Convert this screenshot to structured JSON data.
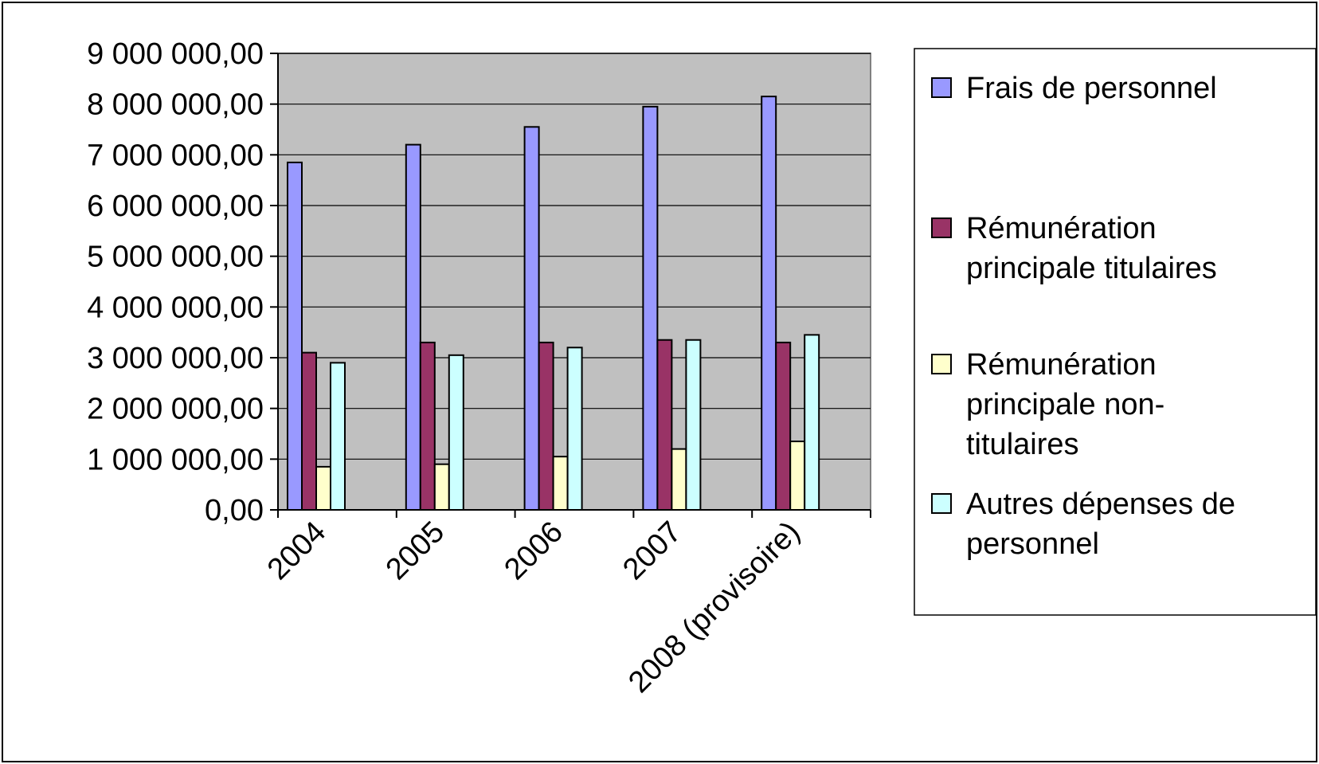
{
  "chart_data": {
    "type": "bar",
    "title": "",
    "xlabel": "",
    "ylabel": "",
    "categories": [
      "2004",
      "2005",
      "2006",
      "2007",
      "2008 (provisoire)"
    ],
    "ylim": [
      0,
      9000000
    ],
    "yticks": [
      0,
      1000000,
      2000000,
      3000000,
      4000000,
      5000000,
      6000000,
      7000000,
      8000000,
      9000000
    ],
    "ytick_labels": [
      "0,00",
      "1 000 000,00",
      "2 000 000,00",
      "3 000 000,00",
      "4 000 000,00",
      "5 000 000,00",
      "6 000 000,00",
      "7 000 000,00",
      "8 000 000,00",
      "9 000 000,00"
    ],
    "grid": true,
    "legend_position": "right",
    "plot_background": "#c0c0c0",
    "series": [
      {
        "name": "Frais de personnel",
        "legend_lines": [
          "Frais de personnel"
        ],
        "color": "#9999ff",
        "values": [
          6850000,
          7200000,
          7550000,
          7950000,
          8150000
        ]
      },
      {
        "name": "Rémunération principale titulaires",
        "legend_lines": [
          "Rémunération",
          "principale titulaires"
        ],
        "color": "#993366",
        "values": [
          3100000,
          3300000,
          3300000,
          3350000,
          3300000
        ]
      },
      {
        "name": "Rémunération principale non-titulaires",
        "legend_lines": [
          "Rémunération",
          "principale non-",
          "titulaires"
        ],
        "color": "#ffffcc",
        "values": [
          850000,
          900000,
          1050000,
          1200000,
          1350000
        ]
      },
      {
        "name": "Autres dépenses de personnel",
        "legend_lines": [
          "Autres dépenses de",
          "personnel"
        ],
        "color": "#ccffff",
        "values": [
          2900000,
          3050000,
          3200000,
          3350000,
          3450000
        ]
      }
    ]
  }
}
